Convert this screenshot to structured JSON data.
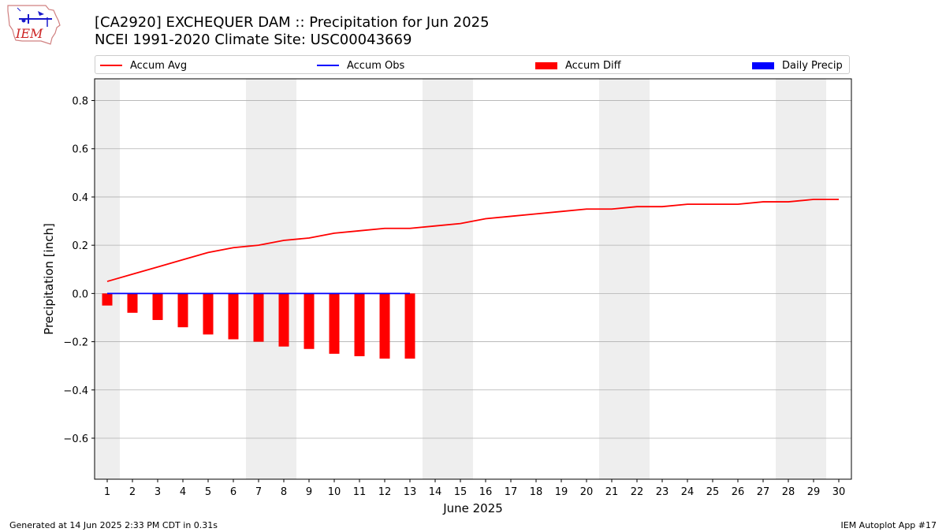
{
  "header": {
    "title_line1": "[CA2920] EXCHEQUER DAM :: Precipitation for Jun 2025",
    "title_line2": "NCEI 1991-2020 Climate Site: USC00043669"
  },
  "logo": {
    "text": "IEM"
  },
  "legend": {
    "items": [
      {
        "label": "Accum Avg",
        "color": "#ff0000",
        "kind": "line"
      },
      {
        "label": "Accum Obs",
        "color": "#0000ff",
        "kind": "line"
      },
      {
        "label": "Accum Diff",
        "color": "#ff0000",
        "kind": "box"
      },
      {
        "label": "Daily Precip",
        "color": "#0000ff",
        "kind": "box"
      }
    ]
  },
  "footer": {
    "left": "Generated at 14 Jun 2025 2:33 PM CDT in 0.31s",
    "right": "IEM Autoplot App #17"
  },
  "chart_data": {
    "type": "line",
    "xlabel": "June 2025",
    "ylabel": "Precipitation [inch]",
    "xlim": [
      0.5,
      30.5
    ],
    "ylim": [
      -0.77,
      0.89
    ],
    "xticks": [
      1,
      2,
      3,
      4,
      5,
      6,
      7,
      8,
      9,
      10,
      11,
      12,
      13,
      14,
      15,
      16,
      17,
      18,
      19,
      20,
      21,
      22,
      23,
      24,
      25,
      26,
      27,
      28,
      29,
      30
    ],
    "yticks": [
      -0.6,
      -0.4,
      -0.2,
      0.0,
      0.2,
      0.4,
      0.6,
      0.8
    ],
    "ytick_labels": [
      "−0.6",
      "−0.4",
      "−0.2",
      "0.0",
      "0.2",
      "0.4",
      "0.6",
      "0.8"
    ],
    "grid": true,
    "weekend_shading": [
      [
        0.5,
        1.5
      ],
      [
        6.5,
        8.5
      ],
      [
        13.5,
        15.5
      ],
      [
        20.5,
        22.5
      ],
      [
        27.5,
        29.5
      ]
    ],
    "series": [
      {
        "name": "Accum Avg",
        "type": "line",
        "color": "#ff0000",
        "x": [
          1,
          2,
          3,
          4,
          5,
          6,
          7,
          8,
          9,
          10,
          11,
          12,
          13,
          14,
          15,
          16,
          17,
          18,
          19,
          20,
          21,
          22,
          23,
          24,
          25,
          26,
          27,
          28,
          29,
          30
        ],
        "values": [
          0.05,
          0.08,
          0.11,
          0.14,
          0.17,
          0.19,
          0.2,
          0.22,
          0.23,
          0.25,
          0.26,
          0.27,
          0.27,
          0.28,
          0.29,
          0.31,
          0.32,
          0.33,
          0.34,
          0.35,
          0.35,
          0.36,
          0.36,
          0.37,
          0.37,
          0.37,
          0.38,
          0.38,
          0.39,
          0.39
        ]
      },
      {
        "name": "Accum Obs",
        "type": "line",
        "color": "#0000ff",
        "x": [
          1,
          2,
          3,
          4,
          5,
          6,
          7,
          8,
          9,
          10,
          11,
          12,
          13
        ],
        "values": [
          0,
          0,
          0,
          0,
          0,
          0,
          0,
          0,
          0,
          0,
          0,
          0,
          0
        ]
      },
      {
        "name": "Accum Diff",
        "type": "bar",
        "color": "#ff0000",
        "x": [
          1,
          2,
          3,
          4,
          5,
          6,
          7,
          8,
          9,
          10,
          11,
          12,
          13
        ],
        "values": [
          -0.05,
          -0.08,
          -0.11,
          -0.14,
          -0.17,
          -0.19,
          -0.2,
          -0.22,
          -0.23,
          -0.25,
          -0.26,
          -0.27,
          -0.27
        ]
      },
      {
        "name": "Daily Precip",
        "type": "bar",
        "color": "#0000ff",
        "x": [
          1,
          2,
          3,
          4,
          5,
          6,
          7,
          8,
          9,
          10,
          11,
          12,
          13
        ],
        "values": [
          0,
          0,
          0,
          0,
          0,
          0,
          0,
          0,
          0,
          0,
          0,
          0,
          0
        ]
      }
    ]
  }
}
